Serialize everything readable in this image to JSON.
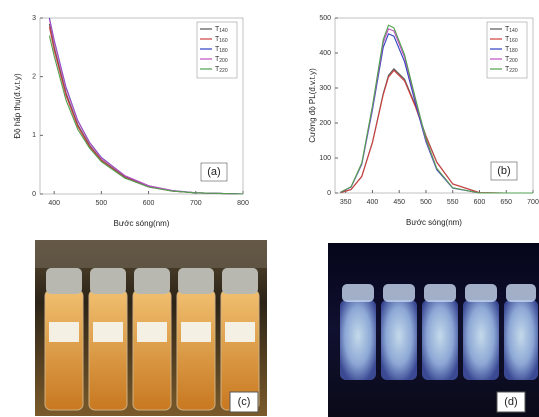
{
  "chart_data": [
    {
      "type": "line",
      "annotation": "(a)",
      "x_label": "Bước sóng(nm)",
      "y_label": "Độ hấp thụ(đ.v.t.y)",
      "x": [
        390,
        400,
        425,
        450,
        475,
        500,
        550,
        600,
        650,
        700,
        750,
        800
      ],
      "series": [
        {
          "name": "T140",
          "color": "#555555",
          "values": [
            2.9,
            2.5,
            1.72,
            1.18,
            0.83,
            0.58,
            0.29,
            0.13,
            0.05,
            0.02,
            0.01,
            0.0
          ]
        },
        {
          "name": "T160",
          "color": "#d04040",
          "values": [
            2.85,
            2.45,
            1.68,
            1.15,
            0.81,
            0.57,
            0.28,
            0.12,
            0.05,
            0.02,
            0.01,
            0.0
          ]
        },
        {
          "name": "T180",
          "color": "#3040c0",
          "values": [
            3.0,
            2.62,
            1.82,
            1.25,
            0.88,
            0.62,
            0.31,
            0.14,
            0.06,
            0.02,
            0.01,
            0.0
          ]
        },
        {
          "name": "T200",
          "color": "#c050c0",
          "values": [
            2.98,
            2.6,
            1.8,
            1.24,
            0.87,
            0.61,
            0.31,
            0.14,
            0.06,
            0.02,
            0.01,
            0.0
          ]
        },
        {
          "name": "T220",
          "color": "#50a050",
          "values": [
            2.7,
            2.35,
            1.6,
            1.1,
            0.78,
            0.55,
            0.27,
            0.12,
            0.05,
            0.02,
            0.01,
            0.0
          ]
        }
      ],
      "xlim": [
        370,
        800
      ],
      "xticks": [
        400,
        500,
        600,
        700,
        800
      ],
      "ylim": [
        0,
        3
      ],
      "yticks": [
        0,
        1,
        2,
        3
      ],
      "legend": "upper right"
    },
    {
      "type": "line",
      "annotation": "(b)",
      "x_label": "Bước sóng(nm)",
      "y_label": "Cường độ PL(đ.v.t.y)",
      "x": [
        340,
        360,
        380,
        400,
        420,
        430,
        440,
        460,
        480,
        500,
        520,
        550,
        600,
        650,
        700
      ],
      "series": [
        {
          "name": "T140",
          "color": "#555555",
          "values": [
            1,
            10,
            48,
            146,
            284,
            336,
            355,
            325,
            251,
            163,
            89,
            26,
            1,
            0,
            0
          ]
        },
        {
          "name": "T160",
          "color": "#d04040",
          "values": [
            1,
            10,
            47,
            144,
            280,
            331,
            350,
            320,
            247,
            161,
            88,
            26,
            1,
            0,
            0
          ]
        },
        {
          "name": "T180",
          "color": "#3040c0",
          "values": [
            2,
            17,
            82,
            238,
            416,
            455,
            448,
            375,
            258,
            146,
            67,
            14,
            0,
            0,
            0
          ]
        },
        {
          "name": "T200",
          "color": "#c050c0",
          "values": [
            2,
            18,
            84,
            245,
            429,
            469,
            463,
            387,
            267,
            151,
            70,
            15,
            0,
            0,
            0
          ]
        },
        {
          "name": "T220",
          "color": "#50a050",
          "values": [
            2,
            18,
            86,
            250,
            438,
            479,
            472,
            395,
            272,
            154,
            71,
            15,
            0,
            0,
            0
          ]
        }
      ],
      "xlim": [
        330,
        700
      ],
      "xticks": [
        350,
        400,
        450,
        500,
        550,
        600,
        650,
        700
      ],
      "ylim": [
        0,
        500
      ],
      "yticks": [
        0,
        100,
        200,
        300,
        400,
        500
      ],
      "legend": "upper right"
    }
  ],
  "panels": [
    {
      "label": "(c)"
    },
    {
      "label": "(d)"
    }
  ]
}
